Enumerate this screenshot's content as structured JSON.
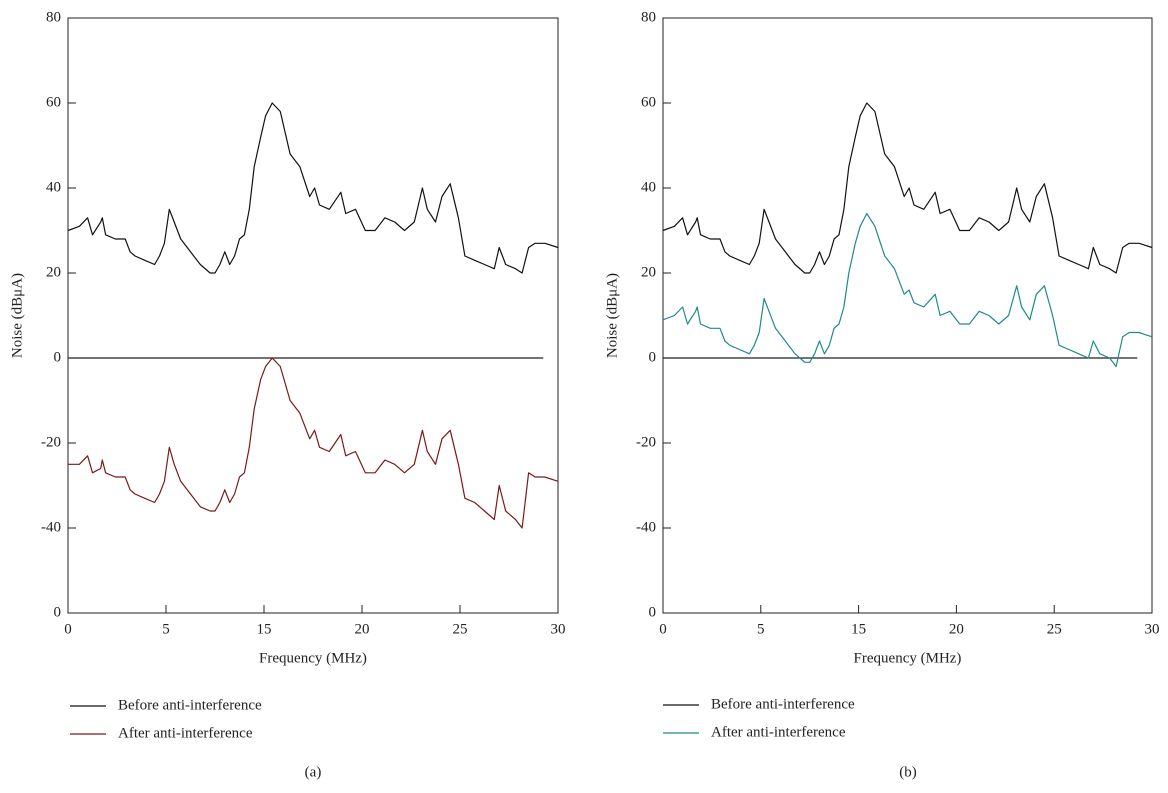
{
  "chart_data": [
    {
      "type": "line",
      "ylabel": "Noise (dBμA)",
      "xlabel": "Frequency (MHz)",
      "caption": "(a)",
      "xlim": [
        0,
        30
      ],
      "ylim": [
        -60,
        80
      ],
      "xticks": [
        0,
        {
          "value": 6,
          "label": "5"
        },
        {
          "value": 12,
          "label": "15"
        },
        {
          "value": 18,
          "label": "20"
        },
        {
          "value": 24,
          "label": "25"
        },
        30
      ],
      "yticks": [
        {
          "value": -60,
          "label": "0"
        },
        -40,
        -20,
        0,
        20,
        40,
        60,
        80
      ],
      "reference_line": {
        "y": 0,
        "xmax": 29.1
      },
      "x": [
        0,
        0.7,
        1.2,
        1.5,
        2.0,
        2.1,
        2.3,
        2.9,
        3.5,
        3.8,
        4.1,
        4.7,
        5.3,
        5.6,
        5.9,
        6.2,
        6.5,
        6.9,
        7.5,
        8.1,
        8.7,
        9.0,
        9.3,
        9.6,
        9.9,
        10.2,
        10.5,
        10.8,
        11.1,
        11.4,
        11.8,
        12.1,
        12.5,
        13.0,
        13.6,
        14.2,
        14.8,
        15.1,
        15.4,
        16.0,
        16.7,
        17.0,
        17.6,
        18.2,
        18.8,
        19.4,
        20.0,
        20.6,
        21.2,
        21.7,
        22.0,
        22.5,
        22.9,
        23.4,
        23.9,
        24.3,
        24.9,
        25.5,
        26.1,
        26.4,
        26.8,
        27.4,
        27.8,
        28.2,
        28.6,
        29.2,
        30.0
      ],
      "series": [
        {
          "name": "Before anti-interference",
          "color": "#111111",
          "values": [
            30,
            31,
            33,
            29,
            32,
            33,
            29,
            28,
            28,
            25,
            24,
            23,
            22,
            24,
            27,
            35,
            32,
            28,
            25,
            22,
            20,
            20,
            22,
            25,
            22,
            24,
            28,
            29,
            35,
            45,
            52,
            57,
            60,
            58,
            48,
            45,
            38,
            40,
            36,
            35,
            39,
            34,
            35,
            30,
            30,
            33,
            32,
            30,
            32,
            40,
            35,
            32,
            38,
            41,
            33,
            24,
            23,
            22,
            21,
            26,
            22,
            21,
            20,
            26,
            27,
            27,
            26
          ]
        },
        {
          "name": "After anti-interference",
          "color": "#7a1a1a",
          "values": [
            -25,
            -25,
            -23,
            -27,
            -26,
            -24,
            -27,
            -28,
            -28,
            -31,
            -32,
            -33,
            -34,
            -32,
            -29,
            -21,
            -25,
            -29,
            -32,
            -35,
            -36,
            -36,
            -34,
            -31,
            -34,
            -32,
            -28,
            -27,
            -21,
            -12,
            -5,
            -2,
            0,
            -2,
            -10,
            -13,
            -19,
            -17,
            -21,
            -22,
            -18,
            -23,
            -22,
            -27,
            -27,
            -24,
            -25,
            -27,
            -25,
            -17,
            -22,
            -25,
            -19,
            -17,
            -25,
            -33,
            -34,
            -36,
            -38,
            -30,
            -36,
            -38,
            -40,
            -27,
            -28,
            -28,
            -29
          ]
        }
      ]
    },
    {
      "type": "line",
      "ylabel": "Noise (dBμA)",
      "xlabel": "Frequency (MHz)",
      "caption": "(b)",
      "xlim": [
        0,
        30
      ],
      "ylim": [
        -60,
        80
      ],
      "xticks": [
        0,
        {
          "value": 6,
          "label": "5"
        },
        {
          "value": 12,
          "label": "15"
        },
        {
          "value": 18,
          "label": "20"
        },
        {
          "value": 24,
          "label": "25"
        },
        30
      ],
      "yticks": [
        {
          "value": -60,
          "label": "0"
        },
        -40,
        -20,
        0,
        20,
        40,
        60,
        80
      ],
      "reference_line": {
        "y": 0,
        "xmax": 29.1
      },
      "x": [
        0,
        0.7,
        1.2,
        1.5,
        2.0,
        2.1,
        2.3,
        2.9,
        3.5,
        3.8,
        4.1,
        4.7,
        5.3,
        5.6,
        5.9,
        6.2,
        6.5,
        6.9,
        7.5,
        8.1,
        8.7,
        9.0,
        9.3,
        9.6,
        9.9,
        10.2,
        10.5,
        10.8,
        11.1,
        11.4,
        11.8,
        12.1,
        12.5,
        13.0,
        13.6,
        14.2,
        14.8,
        15.1,
        15.4,
        16.0,
        16.7,
        17.0,
        17.6,
        18.2,
        18.8,
        19.4,
        20.0,
        20.6,
        21.2,
        21.7,
        22.0,
        22.5,
        22.9,
        23.4,
        23.9,
        24.3,
        24.9,
        25.5,
        26.1,
        26.4,
        26.8,
        27.4,
        27.8,
        28.2,
        28.6,
        29.2,
        30.0
      ],
      "series": [
        {
          "name": "Before anti-interference",
          "color": "#111111",
          "values": [
            30,
            31,
            33,
            29,
            32,
            33,
            29,
            28,
            28,
            25,
            24,
            23,
            22,
            24,
            27,
            35,
            32,
            28,
            25,
            22,
            20,
            20,
            22,
            25,
            22,
            24,
            28,
            29,
            35,
            45,
            52,
            57,
            60,
            58,
            48,
            45,
            38,
            40,
            36,
            35,
            39,
            34,
            35,
            30,
            30,
            33,
            32,
            30,
            32,
            40,
            35,
            32,
            38,
            41,
            33,
            24,
            23,
            22,
            21,
            26,
            22,
            21,
            20,
            26,
            27,
            27,
            26
          ]
        },
        {
          "name": "After anti-interference",
          "color": "#1f8a8a",
          "values": [
            9,
            10,
            12,
            8,
            11,
            12,
            8,
            7,
            7,
            4,
            3,
            2,
            1,
            3,
            6,
            14,
            11,
            7,
            4,
            1,
            -1,
            -1,
            1,
            4,
            1,
            3,
            7,
            8,
            12,
            20,
            27,
            31,
            34,
            31,
            24,
            21,
            15,
            16,
            13,
            12,
            15,
            10,
            11,
            8,
            8,
            11,
            10,
            8,
            10,
            17,
            12,
            9,
            15,
            17,
            10,
            3,
            2,
            1,
            0,
            4,
            1,
            0,
            -2,
            5,
            6,
            6,
            5
          ]
        }
      ]
    }
  ]
}
